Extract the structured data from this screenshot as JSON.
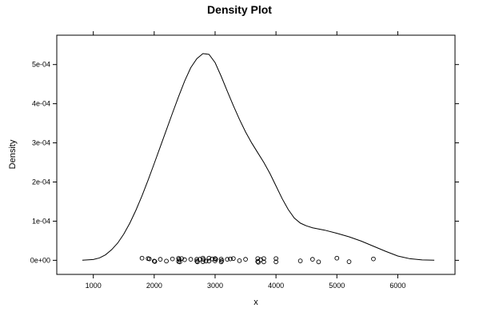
{
  "chart_data": {
    "type": "line",
    "title": "Density Plot",
    "xlabel": "x",
    "ylabel": "Density",
    "xlim": [
      400,
      6940
    ],
    "ylim": [
      -3.6e-05,
      0.000575
    ],
    "x_ticks": [
      1000,
      2000,
      3000,
      4000,
      5000,
      6000
    ],
    "x_tick_labels": [
      "1000",
      "2000",
      "3000",
      "4000",
      "5000",
      "6000"
    ],
    "y_ticks": [
      0,
      0.0001,
      0.0002,
      0.0003,
      0.0004,
      0.0005
    ],
    "y_tick_labels": [
      "0e+00",
      "1e-04",
      "2e-04",
      "3e-04",
      "4e-04",
      "5e-04"
    ],
    "grid": false,
    "series": [
      {
        "kind": "density-line",
        "color": "#000000",
        "x": [
          820,
          1000,
          1100,
          1200,
          1300,
          1400,
          1500,
          1600,
          1700,
          1800,
          1900,
          2000,
          2100,
          2200,
          2300,
          2400,
          2500,
          2600,
          2700,
          2800,
          2900,
          3000,
          3100,
          3200,
          3300,
          3400,
          3500,
          3600,
          3700,
          3800,
          3900,
          4000,
          4100,
          4200,
          4300,
          4400,
          4500,
          4600,
          4800,
          5000,
          5200,
          5400,
          5600,
          5800,
          6000,
          6200,
          6400,
          6600
        ],
        "y": [
          3e-07,
          2e-06,
          6e-06,
          1.4e-05,
          2.7e-05,
          4.4e-05,
          6.7e-05,
          9.5e-05,
          0.000128,
          0.000165,
          0.000205,
          0.000247,
          0.00029,
          0.000333,
          0.000376,
          0.000418,
          0.000458,
          0.000492,
          0.000515,
          0.000528,
          0.000526,
          0.000505,
          0.00047,
          0.000432,
          0.000395,
          0.00036,
          0.000328,
          0.0003,
          0.000275,
          0.00025,
          0.000222,
          0.00019,
          0.000158,
          0.00013,
          0.000108,
          9.5e-05,
          8.8e-05,
          8.3e-05,
          7.7e-05,
          6.9e-05,
          6e-05,
          4.9e-05,
          3.6e-05,
          2.3e-05,
          1.1e-05,
          4e-06,
          1e-06,
          2e-07
        ]
      },
      {
        "kind": "rug-points",
        "color": "#000000",
        "x": [
          1800,
          1900,
          1920,
          2000,
          2010,
          2100,
          2200,
          2300,
          2400,
          2400,
          2410,
          2420,
          2450,
          2500,
          2600,
          2700,
          2700,
          2710,
          2750,
          2800,
          2800,
          2810,
          2850,
          2900,
          2900,
          2950,
          3000,
          3000,
          3010,
          3100,
          3100,
          3110,
          3200,
          3250,
          3300,
          3400,
          3500,
          3700,
          3700,
          3710,
          3750,
          3800,
          3800,
          4000,
          4000,
          4400,
          4600,
          4700,
          5000,
          5200,
          5600
        ],
        "y": [
          5.5e-06,
          4.5e-06,
          3.5e-06,
          -2e-06,
          -3e-06,
          2.5e-06,
          -2e-06,
          3.5e-06,
          5e-06,
          -3e-06,
          2e-06,
          -4e-06,
          4.5e-06,
          1.5e-06,
          2.5e-06,
          -2e-06,
          2.5e-06,
          -4e-06,
          3e-06,
          5.5e-06,
          -3.5e-06,
          1.5e-06,
          -2e-06,
          5.5e-06,
          -2e-06,
          3.5e-06,
          4.5e-06,
          -1.5e-06,
          2.5e-06,
          -4e-06,
          3e-06,
          -1e-06,
          2.5e-06,
          3.5e-06,
          4.5e-06,
          -1e-06,
          2.5e-06,
          -3e-06,
          4.5e-06,
          -5e-06,
          1.5e-06,
          4.5e-06,
          -4e-06,
          4.5e-06,
          -4e-06,
          -1.5e-06,
          2.5e-06,
          -4e-06,
          5.5e-06,
          -3.5e-06,
          3.5e-06
        ]
      }
    ]
  }
}
